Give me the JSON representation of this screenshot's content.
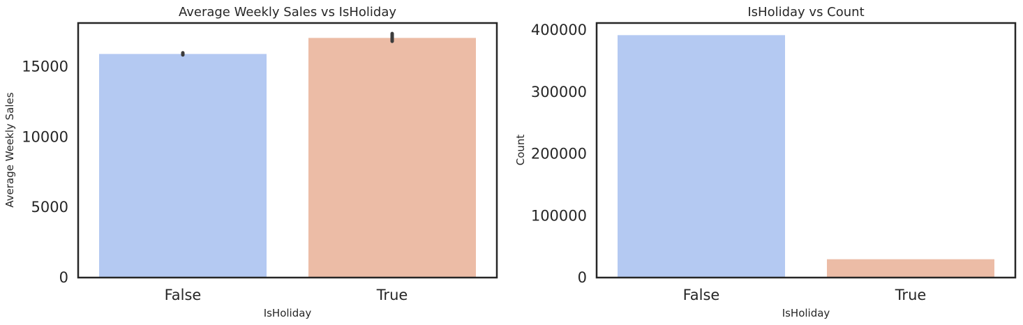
{
  "chart_data": [
    {
      "type": "bar",
      "title": "Average Weekly Sales vs IsHoliday",
      "xlabel": "IsHoliday",
      "ylabel": "Average Weekly Sales",
      "categories": [
        "False",
        "True"
      ],
      "values": [
        15900,
        17040
      ],
      "error_bars": [
        [
          15830,
          15980
        ],
        [
          16800,
          17350
        ]
      ],
      "colors": [
        "#b4c9f2",
        "#ecbca6"
      ],
      "ylim": [
        0,
        18100
      ],
      "yticks": [
        0,
        5000,
        10000,
        15000
      ],
      "grid": false,
      "legend": "none"
    },
    {
      "type": "bar",
      "title": "IsHoliday vs Count",
      "xlabel": "IsHoliday",
      "ylabel": "Count",
      "categories": [
        "False",
        "True"
      ],
      "values": [
        391909,
        29661
      ],
      "colors": [
        "#b4c9f2",
        "#ecbca6"
      ],
      "ylim": [
        0,
        411500
      ],
      "yticks": [
        0,
        100000,
        200000,
        300000,
        400000
      ],
      "grid": false,
      "legend": "none"
    }
  ]
}
